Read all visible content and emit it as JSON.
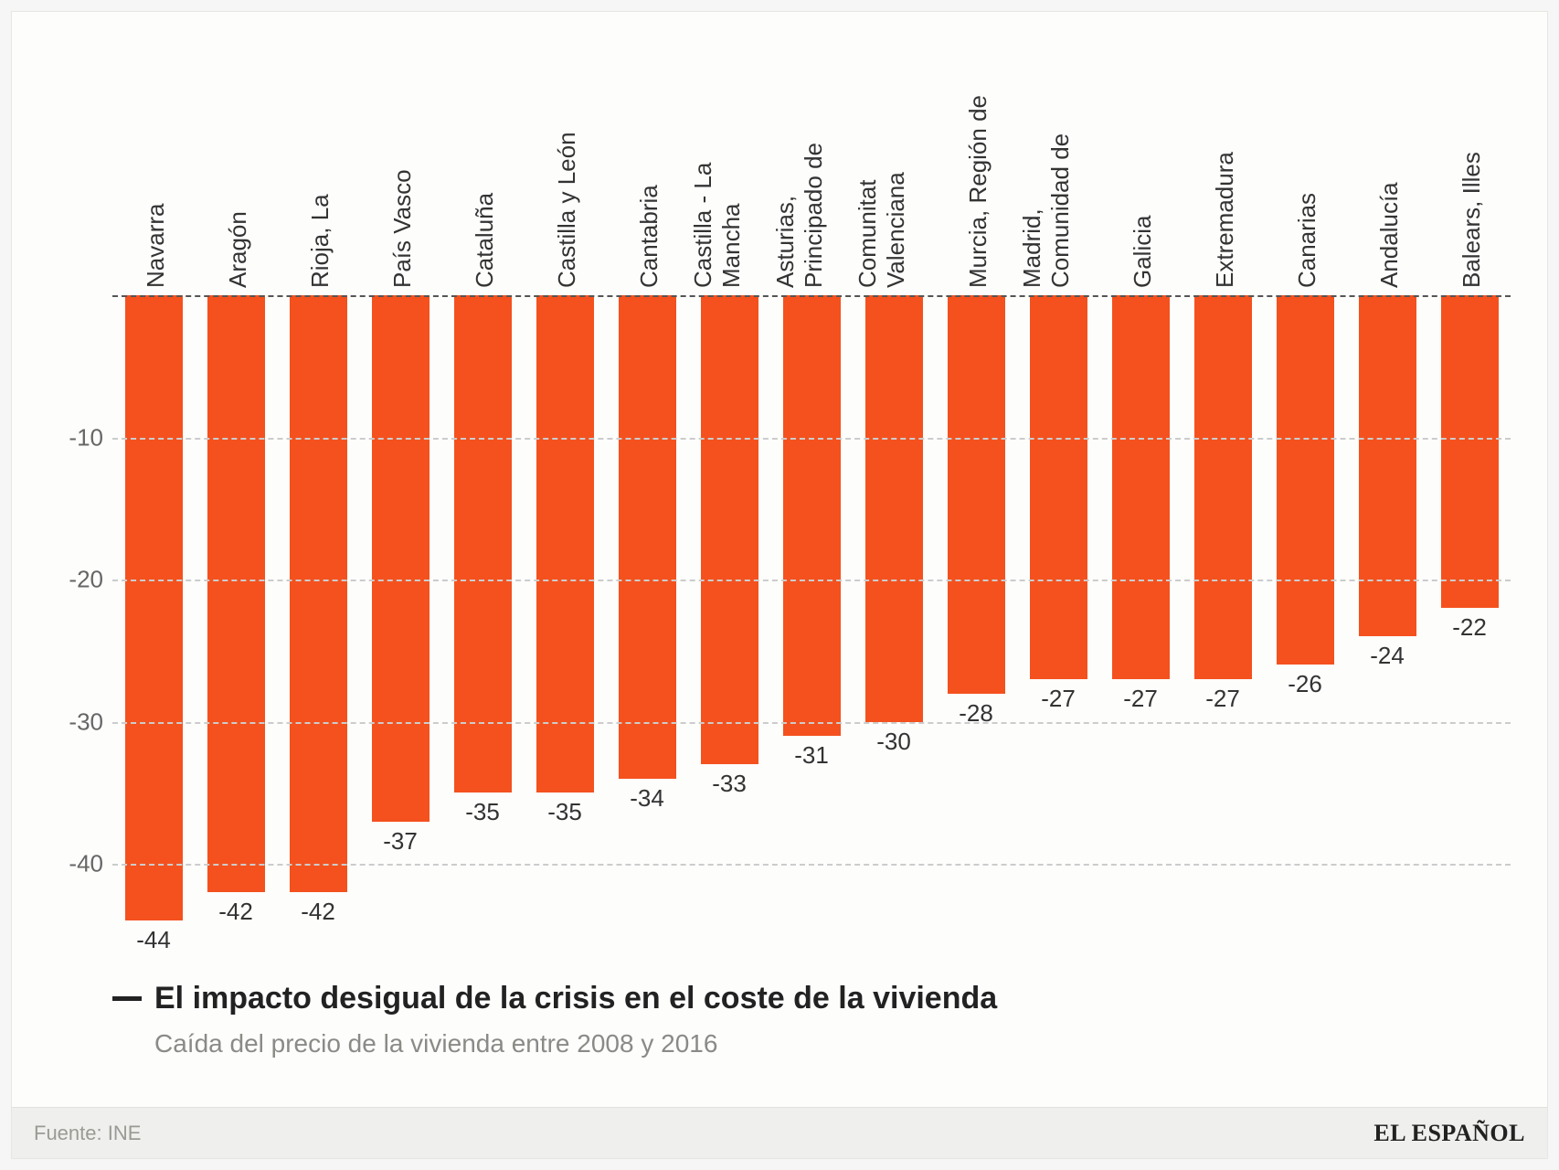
{
  "chart": {
    "type": "bar",
    "orientation": "vertical-negative",
    "categories": [
      "Navarra",
      "Aragón",
      "Rioja, La",
      "País Vasco",
      "Cataluña",
      "Castilla y León",
      "Cantabria",
      "Castilla - La\nMancha",
      "Asturias,\nPrincipado de",
      "Comunitat\nValenciana",
      "Murcia, Región de",
      "Madrid,\nComunidad de",
      "Galicia",
      "Extremadura",
      "Canarias",
      "Andalucía",
      "Balears, Illes"
    ],
    "values": [
      -44,
      -42,
      -42,
      -37,
      -35,
      -35,
      -34,
      -33,
      -31,
      -30,
      -28,
      -27,
      -27,
      -27,
      -26,
      -24,
      -22
    ],
    "bar_color": "#f4511e",
    "value_label_color": "#333333",
    "value_label_fontsize": 26,
    "category_label_color": "#333333",
    "category_label_fontsize": 26,
    "ylim": [
      -45,
      0
    ],
    "yticks": [
      -10,
      -20,
      -30,
      -40
    ],
    "ytick_labels": [
      "-10",
      "-20",
      "-30",
      "-40"
    ],
    "ytick_color": "#666666",
    "ytick_fontsize": 26,
    "zero_line_color": "#555555",
    "grid_color": "#cccccc",
    "grid_dash": "dashed",
    "background_color": "#fdfdfc",
    "bar_width": 0.7
  },
  "caption": {
    "title": "El impacto desigual de la crisis en el coste de la vivienda",
    "title_color": "#222222",
    "title_fontsize": 34,
    "title_fontweight": 700,
    "dash_color": "#222222",
    "subtitle": "Caída del precio de la vivienda entre 2008 y 2016",
    "subtitle_color": "#8a8a86",
    "subtitle_fontsize": 28
  },
  "footer": {
    "source_label": "Fuente: INE",
    "source_color": "#9a9a95",
    "brand": "EL ESPAÑOL",
    "brand_color": "#222222",
    "background_color": "#efefed"
  },
  "frame": {
    "outer_background": "#f6f6f6",
    "card_border": "#e6e6e3"
  }
}
